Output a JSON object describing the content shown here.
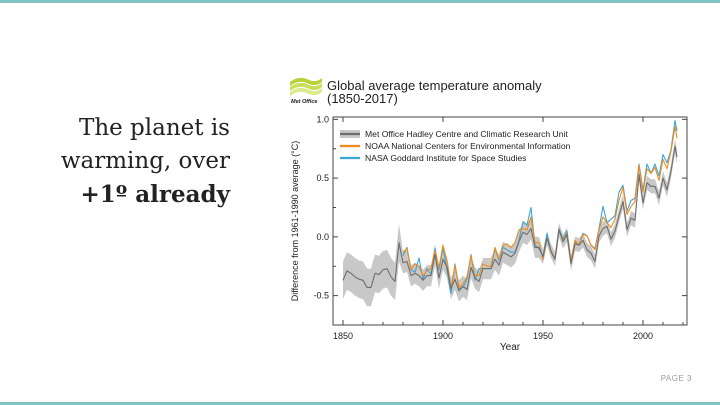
{
  "slide": {
    "headline_lines": [
      "The planet is",
      "warming, over",
      "+1º already"
    ],
    "page_label": "PAGE 3"
  },
  "chart_data": {
    "type": "line",
    "logo_text": "Met Office",
    "title": "Global average temperature anomaly",
    "subtitle": "(1850-2017)",
    "xlabel": "Year",
    "ylabel": "Difference from 1961-1990 average (°C)",
    "xlim": [
      1845,
      2022
    ],
    "ylim": [
      -0.75,
      1.02
    ],
    "xticks": [
      1850,
      1900,
      1950,
      2000
    ],
    "yticks": [
      -0.5,
      0.0,
      0.5,
      1.0
    ],
    "ytick_labels": [
      "-0.5",
      "0.0",
      "0.5",
      "1.0"
    ],
    "legend_position": "top-left",
    "grid": false,
    "colors": {
      "hadcrut": "#6e6e6e",
      "noaa": "#f08a1c",
      "nasa": "#3aa6d8",
      "band": "#c8c8c8"
    },
    "series": [
      {
        "name": "Met Office Hadley Centre and Climatic Research Unit",
        "x": [
          1850,
          1852,
          1854,
          1856,
          1858,
          1860,
          1862,
          1864,
          1866,
          1868,
          1870,
          1872,
          1874,
          1876,
          1878,
          1880,
          1882,
          1884,
          1886,
          1888,
          1890,
          1892,
          1894,
          1896,
          1898,
          1900,
          1902,
          1904,
          1906,
          1908,
          1910,
          1912,
          1914,
          1916,
          1918,
          1920,
          1922,
          1924,
          1926,
          1928,
          1930,
          1932,
          1934,
          1936,
          1938,
          1940,
          1942,
          1944,
          1946,
          1948,
          1950,
          1952,
          1954,
          1956,
          1958,
          1960,
          1962,
          1964,
          1966,
          1968,
          1970,
          1972,
          1974,
          1976,
          1978,
          1980,
          1982,
          1984,
          1986,
          1988,
          1990,
          1992,
          1994,
          1996,
          1998,
          2000,
          2002,
          2004,
          2006,
          2008,
          2010,
          2012,
          2014,
          2016,
          2017
        ],
        "y": [
          -0.37,
          -0.29,
          -0.31,
          -0.34,
          -0.36,
          -0.37,
          -0.43,
          -0.43,
          -0.31,
          -0.32,
          -0.28,
          -0.27,
          -0.34,
          -0.38,
          -0.05,
          -0.22,
          -0.21,
          -0.33,
          -0.31,
          -0.33,
          -0.37,
          -0.33,
          -0.33,
          -0.15,
          -0.35,
          -0.19,
          -0.26,
          -0.44,
          -0.36,
          -0.46,
          -0.42,
          -0.45,
          -0.26,
          -0.35,
          -0.38,
          -0.27,
          -0.27,
          -0.27,
          -0.19,
          -0.24,
          -0.13,
          -0.15,
          -0.17,
          -0.14,
          -0.04,
          0.04,
          0.02,
          0.07,
          -0.09,
          -0.09,
          -0.17,
          -0.01,
          -0.12,
          -0.19,
          0.06,
          -0.04,
          0.02,
          -0.23,
          -0.06,
          -0.07,
          -0.03,
          -0.11,
          -0.14,
          -0.21,
          0.01,
          0.07,
          0.09,
          -0.02,
          0.05,
          0.18,
          0.3,
          0.06,
          0.16,
          0.14,
          0.53,
          0.29,
          0.46,
          0.43,
          0.43,
          0.33,
          0.5,
          0.4,
          0.56,
          0.77,
          0.68
        ]
      },
      {
        "name": "NOAA National Centers for Environmental Information",
        "x": [
          1880,
          1882,
          1884,
          1886,
          1888,
          1890,
          1892,
          1894,
          1896,
          1898,
          1900,
          1902,
          1904,
          1906,
          1908,
          1910,
          1912,
          1914,
          1916,
          1918,
          1920,
          1922,
          1924,
          1926,
          1928,
          1930,
          1932,
          1934,
          1936,
          1938,
          1940,
          1942,
          1944,
          1946,
          1948,
          1950,
          1952,
          1954,
          1956,
          1958,
          1960,
          1962,
          1964,
          1966,
          1968,
          1970,
          1972,
          1974,
          1976,
          1978,
          1980,
          1982,
          1984,
          1986,
          1988,
          1990,
          1992,
          1994,
          1996,
          1998,
          2000,
          2002,
          2004,
          2006,
          2008,
          2010,
          2012,
          2014,
          2016,
          2017
        ],
        "y": [
          -0.13,
          -0.1,
          -0.28,
          -0.23,
          -0.25,
          -0.33,
          -0.29,
          -0.27,
          -0.12,
          -0.26,
          -0.07,
          -0.21,
          -0.44,
          -0.24,
          -0.43,
          -0.4,
          -0.34,
          -0.16,
          -0.33,
          -0.33,
          -0.23,
          -0.25,
          -0.25,
          -0.09,
          -0.19,
          -0.07,
          -0.06,
          -0.09,
          -0.05,
          0.06,
          0.07,
          0.06,
          0.17,
          -0.05,
          -0.05,
          -0.19,
          -0.01,
          -0.13,
          -0.18,
          0.06,
          -0.03,
          0.03,
          -0.2,
          -0.03,
          -0.07,
          0.02,
          0.01,
          -0.07,
          -0.11,
          0.06,
          0.17,
          0.12,
          0.08,
          0.15,
          0.31,
          0.42,
          0.19,
          0.26,
          0.3,
          0.61,
          0.38,
          0.58,
          0.54,
          0.59,
          0.48,
          0.66,
          0.58,
          0.73,
          0.94,
          0.84
        ]
      },
      {
        "name": "NASA Goddard Institute for Space Studies",
        "x": [
          1880,
          1882,
          1884,
          1886,
          1888,
          1890,
          1892,
          1894,
          1896,
          1898,
          1900,
          1902,
          1904,
          1906,
          1908,
          1910,
          1912,
          1914,
          1916,
          1918,
          1920,
          1922,
          1924,
          1926,
          1928,
          1930,
          1932,
          1934,
          1936,
          1938,
          1940,
          1942,
          1944,
          1946,
          1948,
          1950,
          1952,
          1954,
          1956,
          1958,
          1960,
          1962,
          1964,
          1966,
          1968,
          1970,
          1972,
          1974,
          1976,
          1978,
          1980,
          1982,
          1984,
          1986,
          1988,
          1990,
          1992,
          1994,
          1996,
          1998,
          2000,
          2002,
          2004,
          2006,
          2008,
          2010,
          2012,
          2014,
          2016,
          2017
        ],
        "y": [
          -0.16,
          -0.09,
          -0.28,
          -0.3,
          -0.18,
          -0.36,
          -0.27,
          -0.32,
          -0.1,
          -0.28,
          -0.09,
          -0.28,
          -0.48,
          -0.23,
          -0.44,
          -0.43,
          -0.36,
          -0.15,
          -0.37,
          -0.27,
          -0.27,
          -0.27,
          -0.27,
          -0.1,
          -0.2,
          -0.09,
          -0.11,
          -0.13,
          -0.13,
          -0.03,
          0.13,
          0.1,
          0.25,
          -0.07,
          -0.1,
          -0.17,
          0.03,
          -0.13,
          -0.19,
          0.07,
          -0.02,
          0.05,
          -0.2,
          -0.04,
          -0.07,
          0.03,
          0.01,
          -0.07,
          -0.1,
          0.07,
          0.26,
          0.12,
          0.15,
          0.18,
          0.38,
          0.44,
          0.22,
          0.31,
          0.33,
          0.62,
          0.4,
          0.62,
          0.54,
          0.62,
          0.52,
          0.7,
          0.63,
          0.74,
          0.99,
          0.9
        ]
      }
    ]
  }
}
